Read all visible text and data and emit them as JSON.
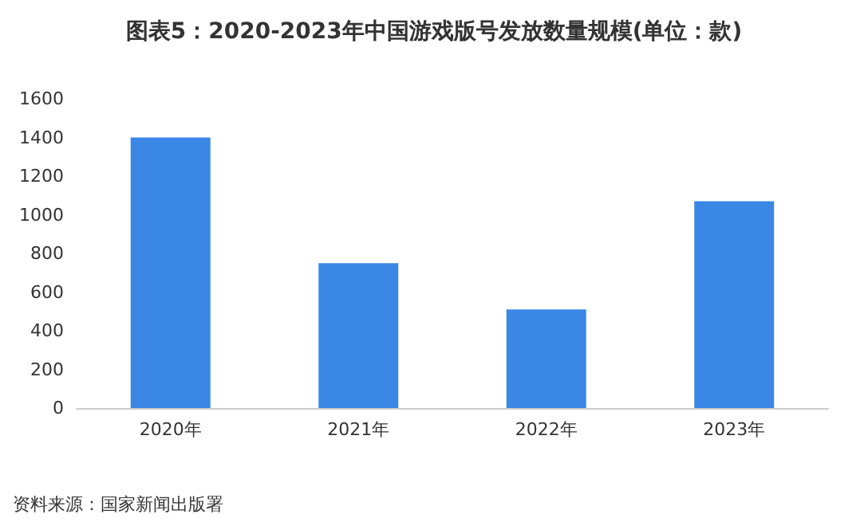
{
  "chart_data": {
    "type": "bar",
    "title": "图表5：2020-2023年中国游戏版号发放数量规模(单位：款)",
    "categories": [
      "2020年",
      "2021年",
      "2022年",
      "2023年"
    ],
    "values": [
      1400,
      750,
      510,
      1070
    ],
    "color": "#3a87e6",
    "ylim": [
      0,
      1600
    ],
    "yticks": [
      0,
      200,
      400,
      600,
      800,
      1000,
      1200,
      1400,
      1600
    ],
    "grid": false,
    "annotations": [
      "资料来源：国家新闻出版署"
    ]
  }
}
